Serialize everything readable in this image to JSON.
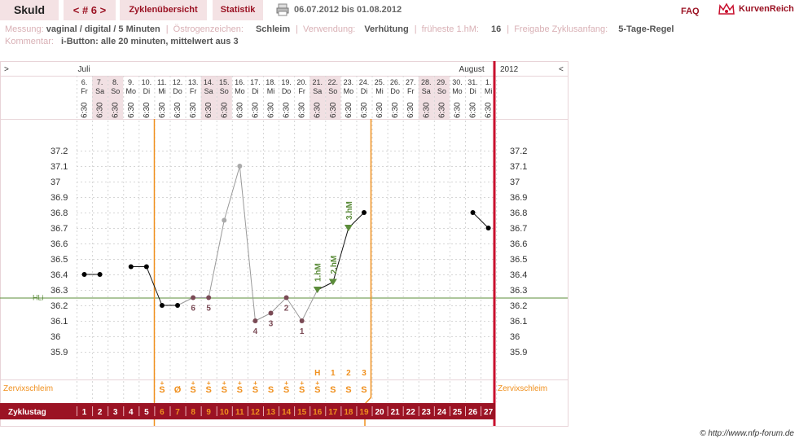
{
  "header": {
    "title": "Skuld",
    "cycle_nav": "< # 6 >",
    "tab_overview": "Zyklenübersicht",
    "tab_stats": "Statistik",
    "date_range": "06.07.2012 bis 01.08.2012",
    "faq": "FAQ",
    "brand": "KurvenReich",
    "print_icon": "printer-icon",
    "brand_icon": "crown-icon"
  },
  "meta": {
    "messung_label": "Messung:",
    "messung_value": "vaginal / digital / 5 Minuten",
    "oestrogen_label": "Östrogenzeichen:",
    "oestrogen_value": "Schleim",
    "verwendung_label": "Verwendung:",
    "verwendung_value": "Verhütung",
    "hm_label": "früheste 1.hM:",
    "hm_value": "16",
    "freigabe_label": "Freigabe Zyklusanfang:",
    "freigabe_value": "5-Tage-Regel",
    "kommentar_label": "Kommentar:",
    "kommentar_value": "i-Button: alle 20 minuten, mittelwert aus 3"
  },
  "chart_data": {
    "type": "line",
    "months": [
      "Juli",
      "August"
    ],
    "year": "2012",
    "nav_prev": ">",
    "nav_next": "<",
    "days": [
      {
        "d": "6.",
        "w": "Fr"
      },
      {
        "d": "7.",
        "w": "Sa"
      },
      {
        "d": "8.",
        "w": "So"
      },
      {
        "d": "9.",
        "w": "Mo"
      },
      {
        "d": "10.",
        "w": "Di"
      },
      {
        "d": "11.",
        "w": "Mi"
      },
      {
        "d": "12.",
        "w": "Do"
      },
      {
        "d": "13.",
        "w": "Fr"
      },
      {
        "d": "14.",
        "w": "Sa"
      },
      {
        "d": "15.",
        "w": "So"
      },
      {
        "d": "16.",
        "w": "Mo"
      },
      {
        "d": "17.",
        "w": "Di"
      },
      {
        "d": "18.",
        "w": "Mi"
      },
      {
        "d": "19.",
        "w": "Do"
      },
      {
        "d": "20.",
        "w": "Fr"
      },
      {
        "d": "21.",
        "w": "Sa"
      },
      {
        "d": "22.",
        "w": "So"
      },
      {
        "d": "23.",
        "w": "Mo"
      },
      {
        "d": "24.",
        "w": "Di"
      },
      {
        "d": "25.",
        "w": "Mi"
      },
      {
        "d": "26.",
        "w": "Do"
      },
      {
        "d": "27.",
        "w": "Fr"
      },
      {
        "d": "28.",
        "w": "Sa"
      },
      {
        "d": "29.",
        "w": "So"
      },
      {
        "d": "30.",
        "w": "Mo"
      },
      {
        "d": "31.",
        "w": "Di"
      },
      {
        "d": "1.",
        "w": "Mi"
      }
    ],
    "time": "6:30",
    "y_ticks": [
      "37.2",
      "37.1",
      "37",
      "36.9",
      "36.8",
      "36.7",
      "36.6",
      "36.5",
      "36.4",
      "36.3",
      "36.2",
      "36.1",
      "36",
      "35.9"
    ],
    "ylim": [
      35.9,
      37.2
    ],
    "temps": [
      36.4,
      36.4,
      null,
      36.45,
      36.45,
      36.2,
      36.2,
      36.25,
      36.25,
      36.75,
      37.1,
      36.1,
      36.15,
      36.25,
      36.1,
      36.3,
      36.35,
      36.7,
      36.8,
      null,
      null,
      null,
      null,
      null,
      null,
      36.8,
      36.7
    ],
    "disturbed": [
      7,
      8,
      9,
      10,
      11,
      12,
      13,
      14
    ],
    "helper_line_label": "HLi",
    "helper_line_value": 36.25,
    "low_numbers": [
      {
        "day": 8,
        "label": "6"
      },
      {
        "day": 9,
        "label": "5"
      },
      {
        "day": 12,
        "label": "4"
      },
      {
        "day": 13,
        "label": "3"
      },
      {
        "day": 14,
        "label": "2"
      },
      {
        "day": 15,
        "label": "1"
      }
    ],
    "hm_markers": [
      {
        "day": 16,
        "label": "1.hM"
      },
      {
        "day": 17,
        "label": "2.hM"
      },
      {
        "day": 18,
        "label": "3.hM"
      }
    ],
    "mucus_peak_labels": [
      {
        "day": 16,
        "label": "H"
      },
      {
        "day": 17,
        "label": "1"
      },
      {
        "day": 18,
        "label": "2"
      },
      {
        "day": 19,
        "label": "3"
      }
    ],
    "mucus_row_label": "Zervixschleim",
    "mucus": [
      "",
      "",
      "",
      "",
      "",
      "S+",
      "Ø",
      "S+",
      "S+",
      "S+",
      "S+",
      "S+",
      "S",
      "S+",
      "S+",
      "S+",
      "S",
      "S",
      "S",
      "",
      "",
      "",
      "",
      "",
      "",
      "",
      ""
    ],
    "cycle_row_label": "Zyklustag",
    "cycle_days": [
      "1",
      "2",
      "3",
      "4",
      "5",
      "6",
      "7",
      "8",
      "9",
      "10",
      "11",
      "12",
      "13",
      "14",
      "15",
      "16",
      "17",
      "18",
      "19",
      "20",
      "21",
      "22",
      "23",
      "24",
      "25",
      "26",
      "27"
    ],
    "highlight_days": [
      6,
      7,
      8,
      9,
      10,
      11,
      12,
      13,
      14,
      15,
      16,
      17,
      18,
      19
    ],
    "colors": {
      "accent": "#9b1324",
      "orange": "#f0901e",
      "green": "#5b8c3a",
      "line_grey": "#9a9a9a",
      "weekend_bg": "#f1e0e3"
    }
  },
  "footer": {
    "credit": "© http://www.nfp-forum.de"
  }
}
